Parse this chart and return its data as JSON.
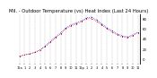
{
  "title": "Mil. - Outdoor Temperature (vs) Heat Index (Last 24 Hours)",
  "title_fontsize": 3.8,
  "background_color": "#ffffff",
  "grid_color": "#aaaaaa",
  "temp_color": "#0000dd",
  "heat_color": "#dd0000",
  "temp_data": [
    5,
    8,
    10,
    13,
    18,
    26,
    35,
    44,
    52,
    62,
    68,
    72,
    76,
    82,
    84,
    78,
    70,
    62,
    56,
    50,
    46,
    44,
    48,
    54
  ],
  "heat_data": [
    5,
    8,
    10,
    13,
    18,
    25,
    33,
    42,
    50,
    60,
    66,
    70,
    74,
    80,
    81,
    75,
    68,
    60,
    54,
    48,
    44,
    42,
    46,
    52
  ],
  "ylim": [
    -10,
    90
  ],
  "yticks": [
    -10,
    0,
    10,
    20,
    30,
    40,
    50,
    60,
    70,
    80,
    90
  ],
  "ytick_labels": [
    "",
    "0",
    "",
    "20",
    "",
    "40",
    "",
    "60",
    "",
    "80",
    ""
  ],
  "ytick_fontsize": 2.8,
  "xtick_fontsize": 2.5,
  "x_labels": [
    "12a",
    "1",
    "2",
    "3",
    "4",
    "5",
    "6",
    "7",
    "8",
    "9",
    "10",
    "11",
    "12p",
    "1",
    "2",
    "3",
    "4",
    "5",
    "6",
    "7",
    "8",
    "9",
    "10",
    "11"
  ],
  "num_points": 24,
  "marker_size": 1.2,
  "line_width": 0.5
}
